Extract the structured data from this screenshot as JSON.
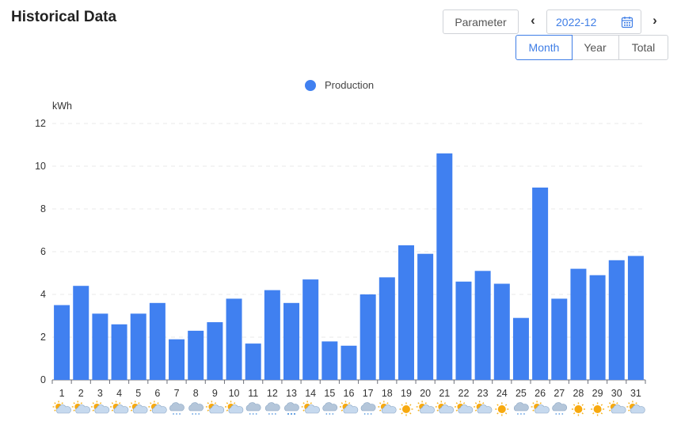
{
  "header": {
    "title": "Historical Data",
    "parameter_label": "Parameter",
    "prev_icon": "‹",
    "next_icon": "›",
    "date_value": "2022-12"
  },
  "period_tabs": [
    {
      "label": "Month",
      "active": true
    },
    {
      "label": "Year",
      "active": false
    },
    {
      "label": "Total",
      "active": false
    }
  ],
  "colors": {
    "accent": "#3f7ee6",
    "bar": "#4080f0"
  },
  "chart_data": {
    "type": "bar",
    "ylabel": "kWh",
    "ylim": [
      0,
      12
    ],
    "yticks": [
      0,
      2,
      4,
      6,
      8,
      10,
      12
    ],
    "grid": true,
    "legend_position": "top-center",
    "categories": [
      "1",
      "2",
      "3",
      "4",
      "5",
      "6",
      "7",
      "8",
      "9",
      "10",
      "11",
      "12",
      "13",
      "14",
      "15",
      "16",
      "17",
      "18",
      "19",
      "20",
      "21",
      "22",
      "23",
      "24",
      "25",
      "26",
      "27",
      "28",
      "29",
      "30",
      "31"
    ],
    "series": [
      {
        "name": "Production",
        "values": [
          3.5,
          4.4,
          3.1,
          2.6,
          3.1,
          3.6,
          1.9,
          2.3,
          2.7,
          3.8,
          1.7,
          4.2,
          3.6,
          4.7,
          1.8,
          1.6,
          4.0,
          4.8,
          6.3,
          5.9,
          10.6,
          4.6,
          5.1,
          4.5,
          2.9,
          9.0,
          3.8,
          5.2,
          4.9,
          5.6,
          5.8
        ]
      }
    ],
    "weather": [
      "partly-cloudy",
      "partly-cloudy",
      "partly-cloudy",
      "partly-cloudy",
      "partly-cloudy",
      "partly-cloudy",
      "rain",
      "rain",
      "partly-cloudy",
      "partly-cloudy",
      "rain",
      "rain",
      "snow",
      "partly-cloudy",
      "rain",
      "partly-cloudy",
      "rain",
      "partly-cloudy",
      "sunny",
      "partly-cloudy",
      "partly-cloudy",
      "partly-cloudy",
      "partly-cloudy",
      "sunny",
      "rain",
      "partly-cloudy",
      "rain",
      "sunny",
      "sunny",
      "partly-cloudy",
      "partly-cloudy"
    ]
  }
}
